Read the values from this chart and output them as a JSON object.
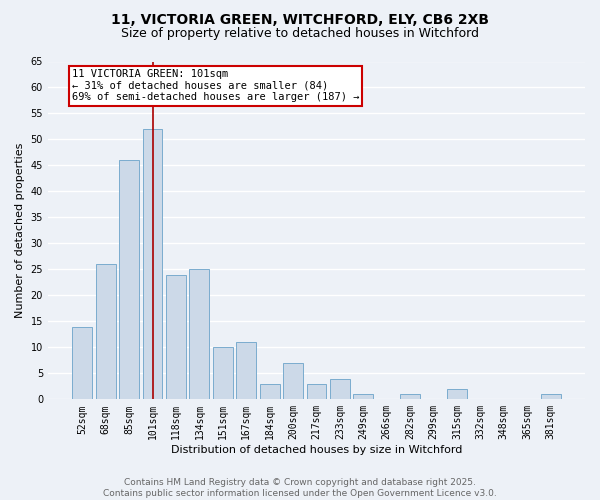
{
  "title_line1": "11, VICTORIA GREEN, WITCHFORD, ELY, CB6 2XB",
  "title_line2": "Size of property relative to detached houses in Witchford",
  "xlabel": "Distribution of detached houses by size in Witchford",
  "ylabel": "Number of detached properties",
  "categories": [
    "52sqm",
    "68sqm",
    "85sqm",
    "101sqm",
    "118sqm",
    "134sqm",
    "151sqm",
    "167sqm",
    "184sqm",
    "200sqm",
    "217sqm",
    "233sqm",
    "249sqm",
    "266sqm",
    "282sqm",
    "299sqm",
    "315sqm",
    "332sqm",
    "348sqm",
    "365sqm",
    "381sqm"
  ],
  "values": [
    14,
    26,
    46,
    52,
    24,
    25,
    10,
    11,
    3,
    7,
    3,
    4,
    1,
    0,
    1,
    0,
    2,
    0,
    0,
    0,
    1
  ],
  "bar_color": "#ccd9e8",
  "bar_edgecolor": "#7aacce",
  "vline_x_index": 3,
  "vline_color": "#aa0000",
  "annotation_line1": "11 VICTORIA GREEN: 101sqm",
  "annotation_line2": "← 31% of detached houses are smaller (84)",
  "annotation_line3": "69% of semi-detached houses are larger (187) →",
  "annotation_box_edgecolor": "#cc0000",
  "annotation_box_facecolor": "#ffffff",
  "footer_text": "Contains HM Land Registry data © Crown copyright and database right 2025.\nContains public sector information licensed under the Open Government Licence v3.0.",
  "ylim": [
    0,
    65
  ],
  "yticks": [
    0,
    5,
    10,
    15,
    20,
    25,
    30,
    35,
    40,
    45,
    50,
    55,
    60,
    65
  ],
  "background_color": "#edf1f7",
  "grid_color": "#ffffff",
  "title_fontsize": 10,
  "subtitle_fontsize": 9,
  "axis_label_fontsize": 8,
  "tick_fontsize": 7,
  "annotation_fontsize": 7.5,
  "footer_fontsize": 6.5
}
